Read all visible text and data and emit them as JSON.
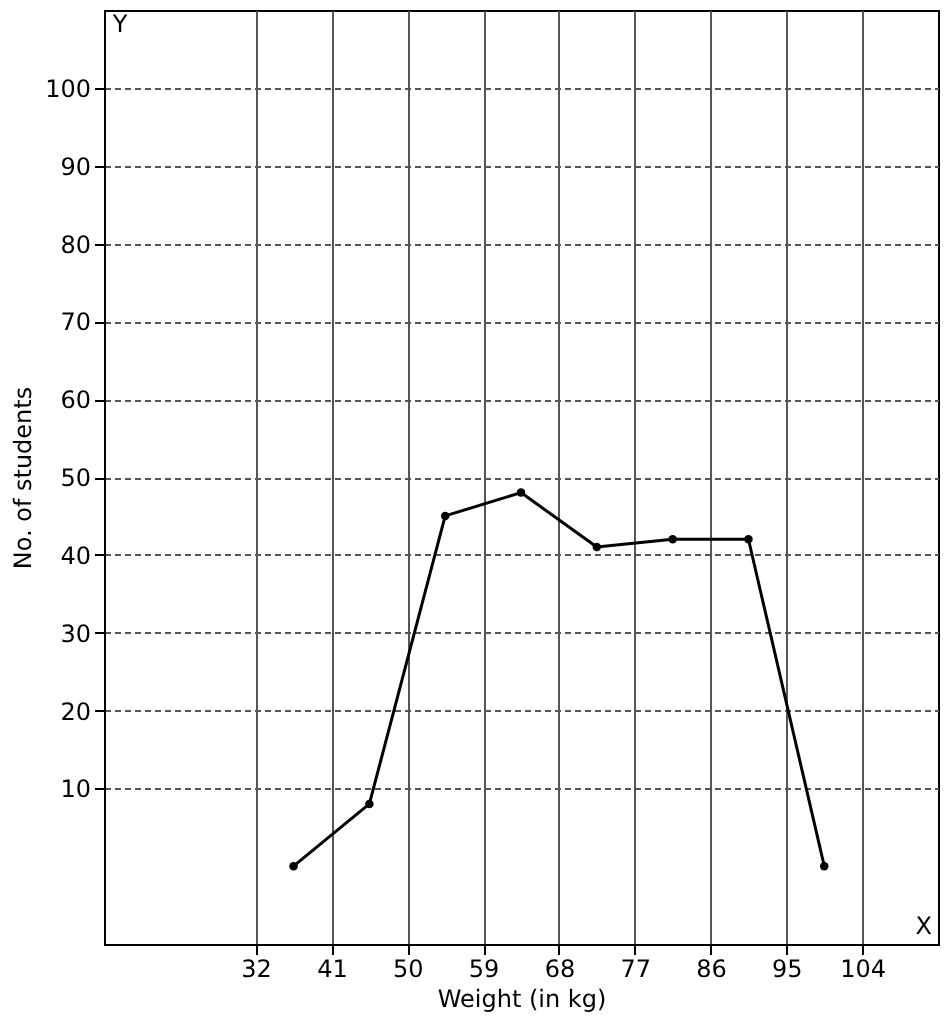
{
  "chart_data": {
    "type": "line",
    "xlabel": "Weight (in kg)",
    "ylabel": "No. of students",
    "x": [
      36.5,
      45.5,
      54.5,
      63.5,
      72.5,
      81.5,
      90.5,
      99.5
    ],
    "series": [
      {
        "color": "#000000",
        "values": [
          0,
          8,
          45,
          48,
          41,
          42,
          42,
          0
        ]
      }
    ],
    "xlim": [
      14,
      113
    ],
    "xticks": [
      32,
      41,
      50,
      59,
      68,
      77,
      86,
      95,
      104
    ],
    "ylim": [
      -10,
      110
    ],
    "yticks": [
      10,
      20,
      30,
      40,
      50,
      60,
      70,
      80,
      90,
      100
    ],
    "grid": true,
    "marker": "circle",
    "line_style": "solid",
    "annotations": [
      "Y",
      "X"
    ]
  }
}
